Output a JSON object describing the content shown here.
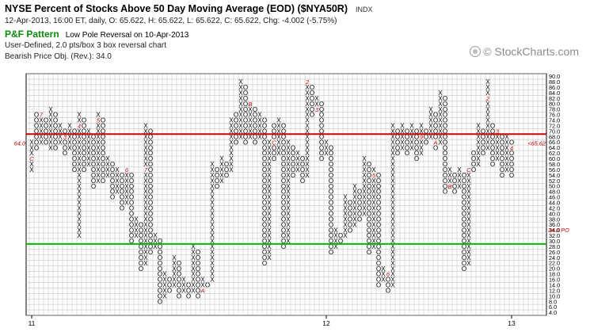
{
  "header": {
    "title": "NYSE Percent of Stocks Above 50 Day Moving Average (EOD) ($NYA50R)",
    "exchange": "INDX",
    "info": "12-Apr-2013, 16:00 ET, daily, O: 65.622, H: 65.622, L: 65.622, C: 65.622, Chg: -4.002 (-5.75%)",
    "pattern_name": "P&F Pattern",
    "pattern_desc": "Low Pole Reversal on 10-Apr-2013",
    "chart_def": "User-Defined, 2.0 pts/box 3 box reversal chart",
    "objective": "Bearish Price Obj. (Rev.): 34.0"
  },
  "watermark": "© StockCharts.com",
  "colors": {
    "x_mark": "#000000",
    "o_mark": "#000000",
    "month_marker": "#cc0000",
    "upper_line": "#cc0000",
    "lower_line": "#00bb00",
    "current_price": "#cc0000",
    "price_objective": "#cc0000",
    "grid": "#bbbbbb"
  },
  "chart_data": {
    "type": "point-and-figure",
    "box_size": 2,
    "reversal": 3,
    "ylim": [
      4,
      90
    ],
    "y_ticks": [
      "4.0",
      "6.0",
      "8.0",
      "10.0",
      "12.0",
      "14.0",
      "16.0",
      "18.0",
      "20.0",
      "22.0",
      "24.0",
      "26.0",
      "28.0",
      "30.0",
      "32.0",
      "34.0",
      "36.0",
      "38.0",
      "40.0",
      "42.0",
      "44.0",
      "46.0",
      "48.0",
      "50.0",
      "52.0",
      "54.0",
      "56.0",
      "58.0",
      "60.0",
      "62.0",
      "64.0",
      "66.0",
      "68.0",
      "70.0",
      "72.0",
      "74.0",
      "76.0",
      "78.0",
      "80.0",
      "82.0",
      "84.0",
      "86.0",
      "88.0",
      "90.0"
    ],
    "x_labels": [
      {
        "label": "11",
        "column": 0
      },
      {
        "label": "12",
        "column": 62
      },
      {
        "label": "13",
        "column": 101
      }
    ],
    "horizontal_lines": [
      {
        "value": 70,
        "color": "red"
      },
      {
        "value": 30,
        "color": "green"
      }
    ],
    "current_price_label": "65.62",
    "current_price": 65.62,
    "current_price_left": "64.0",
    "price_objective_label": "34.0 PO",
    "price_objective": 34,
    "columns": [
      {
        "t": "X",
        "lo": 56,
        "hi": 66,
        "m": {
          "60": "C"
        }
      },
      {
        "t": "O",
        "lo": 64,
        "hi": 76
      },
      {
        "t": "X",
        "lo": 66,
        "hi": 76,
        "m": {
          "76": "7"
        }
      },
      {
        "t": "O",
        "lo": 66,
        "hi": 74
      },
      {
        "t": "X",
        "lo": 64,
        "hi": 78
      },
      {
        "t": "O",
        "lo": 64,
        "hi": 76
      },
      {
        "t": "X",
        "lo": 66,
        "hi": 72
      },
      {
        "t": "O",
        "lo": 62,
        "hi": 70,
        "m": {
          "68": "3"
        }
      },
      {
        "t": "X",
        "lo": 64,
        "hi": 72
      },
      {
        "t": "O",
        "lo": 56,
        "hi": 70
      },
      {
        "t": "X",
        "lo": 32,
        "hi": 76,
        "m": {
          "72": "4"
        }
      },
      {
        "t": "O",
        "lo": 56,
        "hi": 74
      },
      {
        "t": "X",
        "lo": 58,
        "hi": 70
      },
      {
        "t": "O",
        "lo": 50,
        "hi": 68
      },
      {
        "t": "X",
        "lo": 52,
        "hi": 76,
        "m": {
          "74": "5"
        }
      },
      {
        "t": "O",
        "lo": 52,
        "hi": 74
      },
      {
        "t": "X",
        "lo": 54,
        "hi": 60
      },
      {
        "t": "O",
        "lo": 46,
        "hi": 58
      },
      {
        "t": "X",
        "lo": 48,
        "hi": 56
      },
      {
        "t": "O",
        "lo": 42,
        "hi": 54
      },
      {
        "t": "X",
        "lo": 44,
        "hi": 56,
        "m": {
          "56": "6"
        }
      },
      {
        "t": "O",
        "lo": 30,
        "hi": 54
      },
      {
        "t": "X",
        "lo": 32,
        "hi": 38
      },
      {
        "t": "O",
        "lo": 20,
        "hi": 36
      },
      {
        "t": "X",
        "lo": 22,
        "hi": 72,
        "m": {
          "56": "7"
        }
      },
      {
        "t": "O",
        "lo": 26,
        "hi": 70
      },
      {
        "t": "X",
        "lo": 28,
        "hi": 32
      },
      {
        "t": "O",
        "lo": 8,
        "hi": 30,
        "m": {
          "32": "8"
        }
      },
      {
        "t": "X",
        "lo": 10,
        "hi": 18
      },
      {
        "t": "O",
        "lo": 12,
        "hi": 16
      },
      {
        "t": "X",
        "lo": 14,
        "hi": 24
      },
      {
        "t": "O",
        "lo": 10,
        "hi": 22,
        "m": {
          "24": "9"
        }
      },
      {
        "t": "X",
        "lo": 12,
        "hi": 16
      },
      {
        "t": "O",
        "lo": 10,
        "hi": 14
      },
      {
        "t": "X",
        "lo": 12,
        "hi": 28
      },
      {
        "t": "O",
        "lo": 10,
        "hi": 26
      },
      {
        "t": "X",
        "lo": 12,
        "hi": 16,
        "m": {
          "12": "A"
        }
      },
      {
        "t": "O",
        "lo": 14,
        "hi": 14
      },
      {
        "t": "X",
        "lo": 16,
        "hi": 58
      },
      {
        "t": "O",
        "lo": 50,
        "hi": 56
      },
      {
        "t": "X",
        "lo": 52,
        "hi": 60
      },
      {
        "t": "O",
        "lo": 54,
        "hi": 58
      },
      {
        "t": "X",
        "lo": 56,
        "hi": 74
      },
      {
        "t": "O",
        "lo": 66,
        "hi": 76
      },
      {
        "t": "X",
        "lo": 68,
        "hi": 88
      },
      {
        "t": "O",
        "lo": 66,
        "hi": 86
      },
      {
        "t": "X",
        "lo": 68,
        "hi": 80,
        "m": {
          "80": "B"
        }
      },
      {
        "t": "O",
        "lo": 66,
        "hi": 78
      },
      {
        "t": "X",
        "lo": 68,
        "hi": 76
      },
      {
        "t": "O",
        "lo": 22,
        "hi": 74
      },
      {
        "t": "X",
        "lo": 24,
        "hi": 66
      },
      {
        "t": "O",
        "lo": 60,
        "hi": 72,
        "m": {
          "66": "C"
        }
      },
      {
        "t": "X",
        "lo": 62,
        "hi": 74
      },
      {
        "t": "O",
        "lo": 28,
        "hi": 72
      },
      {
        "t": "X",
        "lo": 30,
        "hi": 66
      },
      {
        "t": "O",
        "lo": 54,
        "hi": 64
      },
      {
        "t": "X",
        "lo": 56,
        "hi": 62
      },
      {
        "t": "O",
        "lo": 52,
        "hi": 60
      },
      {
        "t": "X",
        "lo": 54,
        "hi": 88,
        "m": {
          "88": "2"
        }
      },
      {
        "t": "O",
        "lo": 76,
        "hi": 86
      },
      {
        "t": "X",
        "lo": 78,
        "hi": 82,
        "m": {
          "78": "3"
        }
      },
      {
        "t": "O",
        "lo": 60,
        "hi": 80
      },
      {
        "t": "X",
        "lo": 62,
        "hi": 66
      },
      {
        "t": "O",
        "lo": 26,
        "hi": 64
      },
      {
        "t": "X",
        "lo": 28,
        "hi": 34
      },
      {
        "t": "O",
        "lo": 30,
        "hi": 32
      },
      {
        "t": "X",
        "lo": 32,
        "hi": 46
      },
      {
        "t": "O",
        "lo": 34,
        "hi": 44
      },
      {
        "t": "X",
        "lo": 36,
        "hi": 50
      },
      {
        "t": "O",
        "lo": 38,
        "hi": 48
      },
      {
        "t": "X",
        "lo": 40,
        "hi": 60
      },
      {
        "t": "O",
        "lo": 26,
        "hi": 58
      },
      {
        "t": "X",
        "lo": 28,
        "hi": 56,
        "m": {
          "54": "5"
        }
      },
      {
        "t": "O",
        "lo": 14,
        "hi": 54
      },
      {
        "t": "X",
        "lo": 16,
        "hi": 20
      },
      {
        "t": "O",
        "lo": 12,
        "hi": 18,
        "m": {
          "18": "6"
        }
      },
      {
        "t": "X",
        "lo": 14,
        "hi": 72
      },
      {
        "t": "O",
        "lo": 62,
        "hi": 70
      },
      {
        "t": "X",
        "lo": 64,
        "hi": 72
      },
      {
        "t": "O",
        "lo": 62,
        "hi": 70
      },
      {
        "t": "X",
        "lo": 64,
        "hi": 72
      },
      {
        "t": "O",
        "lo": 60,
        "hi": 70
      },
      {
        "t": "X",
        "lo": 62,
        "hi": 72,
        "m": {
          "68": "9"
        }
      },
      {
        "t": "O",
        "lo": 66,
        "hi": 70
      },
      {
        "t": "X",
        "lo": 68,
        "hi": 78
      },
      {
        "t": "O",
        "lo": 64,
        "hi": 76,
        "m": {
          "66": "A"
        }
      },
      {
        "t": "X",
        "lo": 66,
        "hi": 84
      },
      {
        "t": "O",
        "lo": 48,
        "hi": 82
      },
      {
        "t": "X",
        "lo": 50,
        "hi": 56,
        "m": {
          "50": "B"
        }
      },
      {
        "t": "O",
        "lo": 48,
        "hi": 54
      },
      {
        "t": "X",
        "lo": 50,
        "hi": 56
      },
      {
        "t": "O",
        "lo": 20,
        "hi": 54
      },
      {
        "t": "X",
        "lo": 22,
        "hi": 56,
        "m": {
          "56": "C"
        }
      },
      {
        "t": "O",
        "lo": 56,
        "hi": 62
      },
      {
        "t": "X",
        "lo": 58,
        "hi": 72
      },
      {
        "t": "O",
        "lo": 62,
        "hi": 70
      },
      {
        "t": "X",
        "lo": 64,
        "hi": 88,
        "m": {
          "82": "2"
        }
      },
      {
        "t": "O",
        "lo": 58,
        "hi": 72
      },
      {
        "t": "X",
        "lo": 60,
        "hi": 70,
        "m": {
          "70": "3"
        }
      },
      {
        "t": "O",
        "lo": 54,
        "hi": 68
      },
      {
        "t": "X",
        "lo": 56,
        "hi": 68
      },
      {
        "t": "O",
        "lo": 54,
        "hi": 66,
        "m": {
          "64": "4"
        }
      }
    ]
  }
}
